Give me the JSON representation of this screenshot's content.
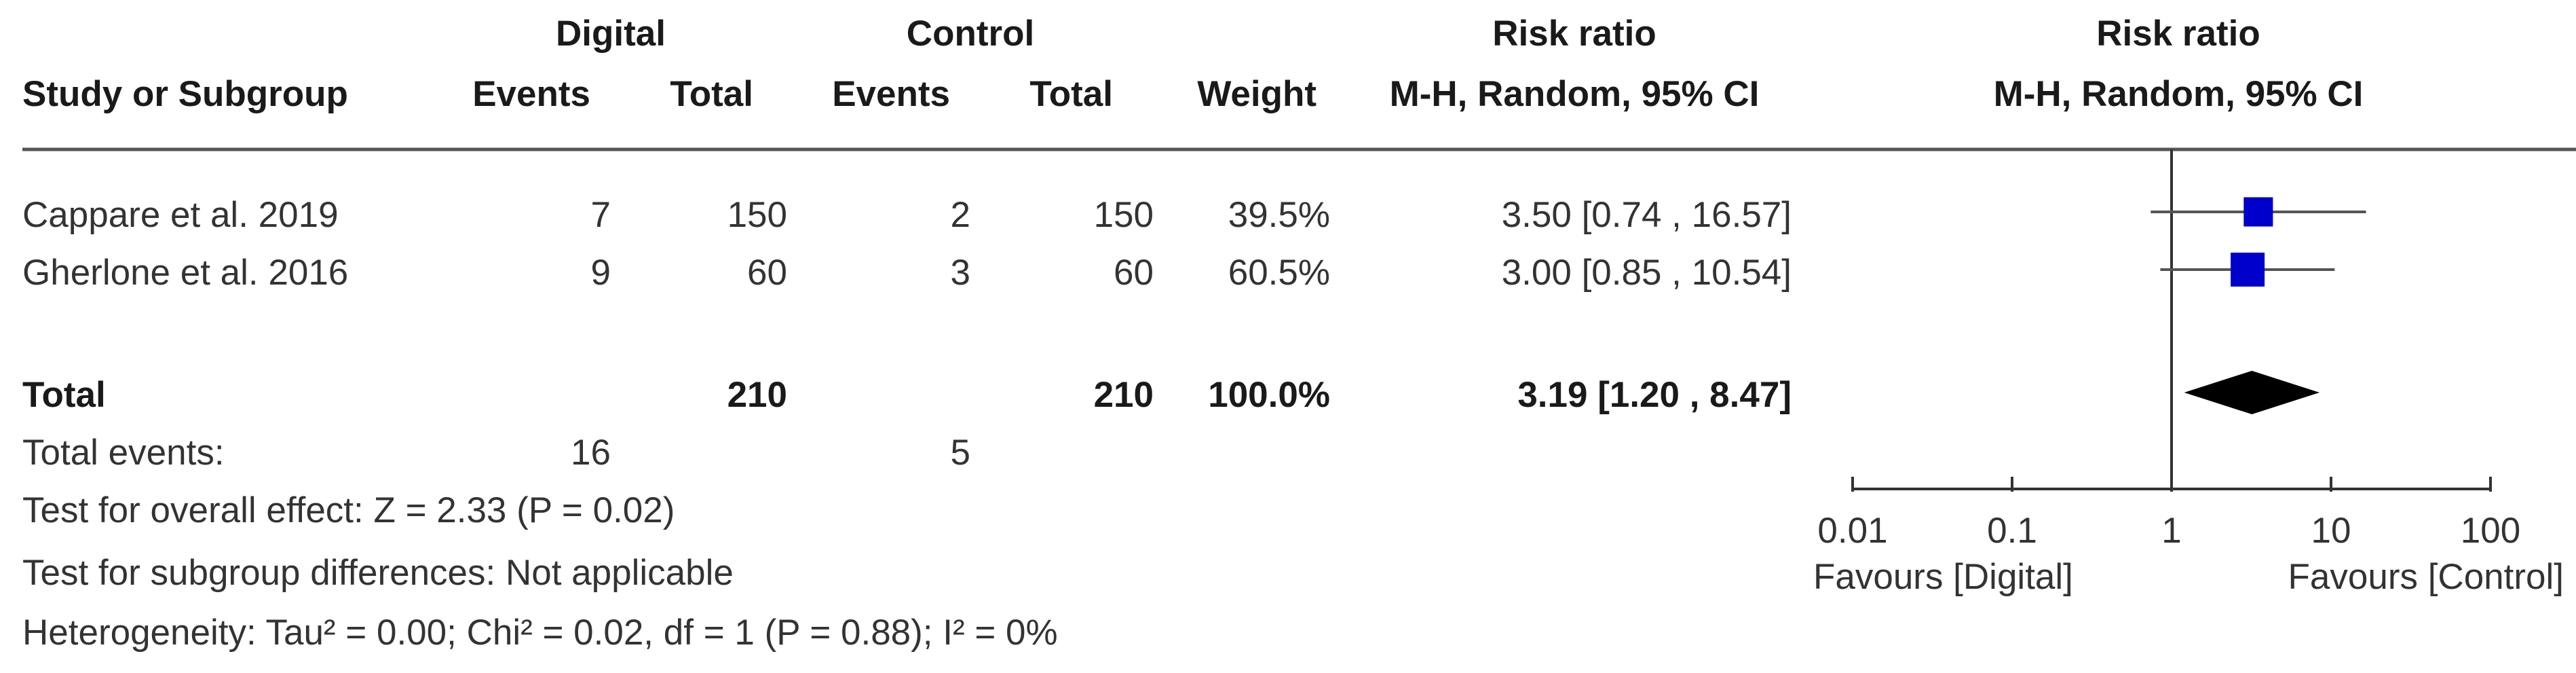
{
  "headers": {
    "group1": "Digital",
    "group2": "Control",
    "risk_ratio_table": "Risk ratio",
    "risk_ratio_plot": "Risk ratio",
    "study_col": "Study or Subgroup",
    "events1": "Events",
    "total1": "Total",
    "events2": "Events",
    "total2": "Total",
    "weight": "Weight",
    "method_table": "M-H, Random, 95% CI",
    "method_plot": "M-H, Random, 95% CI"
  },
  "studies": [
    {
      "name": "Cappare et al. 2019",
      "events1": "7",
      "total1": "150",
      "events2": "2",
      "total2": "150",
      "weight": "39.5%",
      "ci_text": "3.50 [0.74 , 16.57]"
    },
    {
      "name": "Gherlone et al. 2016",
      "events1": "9",
      "total1": "60",
      "events2": "3",
      "total2": "60",
      "weight": "60.5%",
      "ci_text": "3.00 [0.85 , 10.54]"
    }
  ],
  "total": {
    "label": "Total",
    "total1": "210",
    "total2": "210",
    "weight": "100.0%",
    "ci_text": "3.19 [1.20 , 8.47]"
  },
  "total_events": {
    "label": "Total events:",
    "events1": "16",
    "events2": "5"
  },
  "footnotes": {
    "overall_effect": "Test for overall effect: Z = 2.33 (P = 0.02)",
    "subgroup": "Test for subgroup differences: Not applicable",
    "heterogeneity": "Heterogeneity: Tau² = 0.00; Chi² = 0.02, df = 1 (P = 0.88); I² = 0%"
  },
  "axis": {
    "tick_labels": [
      "0.01",
      "0.1",
      "1",
      "10",
      "100"
    ],
    "favours_left": "Favours [Digital]",
    "favours_right": "Favours [Control]"
  },
  "chart_data": {
    "type": "forest",
    "scale": "log",
    "xlim": [
      0.01,
      100
    ],
    "ticks": [
      0.01,
      0.1,
      1,
      10,
      100
    ],
    "null_line": 1,
    "studies": [
      {
        "name": "Cappare et al. 2019",
        "estimate": 3.5,
        "lower": 0.74,
        "upper": 16.57,
        "weight": 39.5
      },
      {
        "name": "Gherlone et al. 2016",
        "estimate": 3.0,
        "lower": 0.85,
        "upper": 10.54,
        "weight": 60.5
      }
    ],
    "pooled": {
      "name": "Total",
      "estimate": 3.19,
      "lower": 1.2,
      "upper": 8.47
    },
    "marker_color": "#0000cc",
    "diamond_color": "#000000"
  }
}
